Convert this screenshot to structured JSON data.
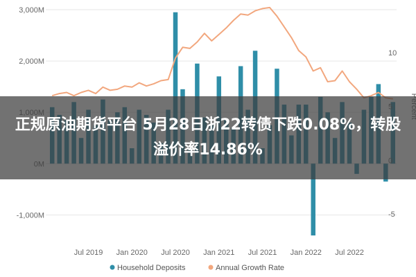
{
  "chart_data": {
    "type": "bar+line",
    "y_left": {
      "ticks": [
        "3,000M",
        "2,000M",
        "1,000M",
        "0M",
        "-1,000M"
      ],
      "range": [
        -1400,
        3000
      ]
    },
    "y_right": {
      "ticks": [
        "10",
        "5",
        "0",
        "-5"
      ],
      "range": [
        -7.0,
        14.0
      ],
      "label": "Percent"
    },
    "x_ticks": [
      {
        "label": "Jul 2019",
        "index": 5
      },
      {
        "label": "Jan 2020",
        "index": 11
      },
      {
        "label": "Jul 2020",
        "index": 17
      },
      {
        "label": "Jan 2021",
        "index": 23
      },
      {
        "label": "Jul 2021",
        "index": 29
      },
      {
        "label": "Jan 2022",
        "index": 35
      },
      {
        "label": "Jul 2022",
        "index": 41
      }
    ],
    "series": [
      {
        "name": "Household Deposits",
        "type": "bar",
        "color": "#2f8ea8",
        "values": [
          1100,
          950,
          850,
          1200,
          500,
          1050,
          750,
          1250,
          850,
          1000,
          1100,
          300,
          1050,
          950,
          800,
          400,
          1050,
          2950,
          1450,
          300,
          1950,
          900,
          750,
          1700,
          850,
          700,
          1900,
          1050,
          2200,
          300,
          750,
          1850,
          1150,
          550,
          1150,
          1150,
          -1400,
          1300,
          1000,
          500,
          1200,
          800,
          -200,
          1050,
          1300,
          1550,
          -350,
          1200
        ]
      },
      {
        "name": "Annual Growth Rate",
        "type": "line",
        "color": "#f2a77e",
        "values": [
          6.0,
          6.2,
          6.3,
          6.0,
          6.3,
          6.5,
          6.2,
          6.8,
          6.5,
          6.6,
          6.9,
          6.8,
          7.2,
          6.9,
          7.1,
          7.4,
          7.5,
          9.5,
          10.5,
          10.4,
          11.0,
          11.8,
          11.1,
          11.7,
          12.3,
          13.0,
          13.6,
          13.5,
          13.9,
          14.1,
          14.2,
          13.4,
          12.4,
          11.4,
          10.2,
          9.6,
          8.3,
          8.6,
          7.3,
          7.4,
          8.3,
          7.3,
          6.6,
          5.8,
          6.0,
          6.3,
          5.8,
          5.7
        ]
      }
    ],
    "legend": {
      "position": "bottom",
      "items": [
        {
          "label": "Household Deposits",
          "color": "#2f8ea8"
        },
        {
          "label": "Annual Growth Rate",
          "color": "#f2a77e"
        }
      ]
    },
    "grid": true
  },
  "overlay": {
    "title": "正规原油期货平台 5月28日浙22转债下跌0.08%，转股溢价率14.86%"
  }
}
